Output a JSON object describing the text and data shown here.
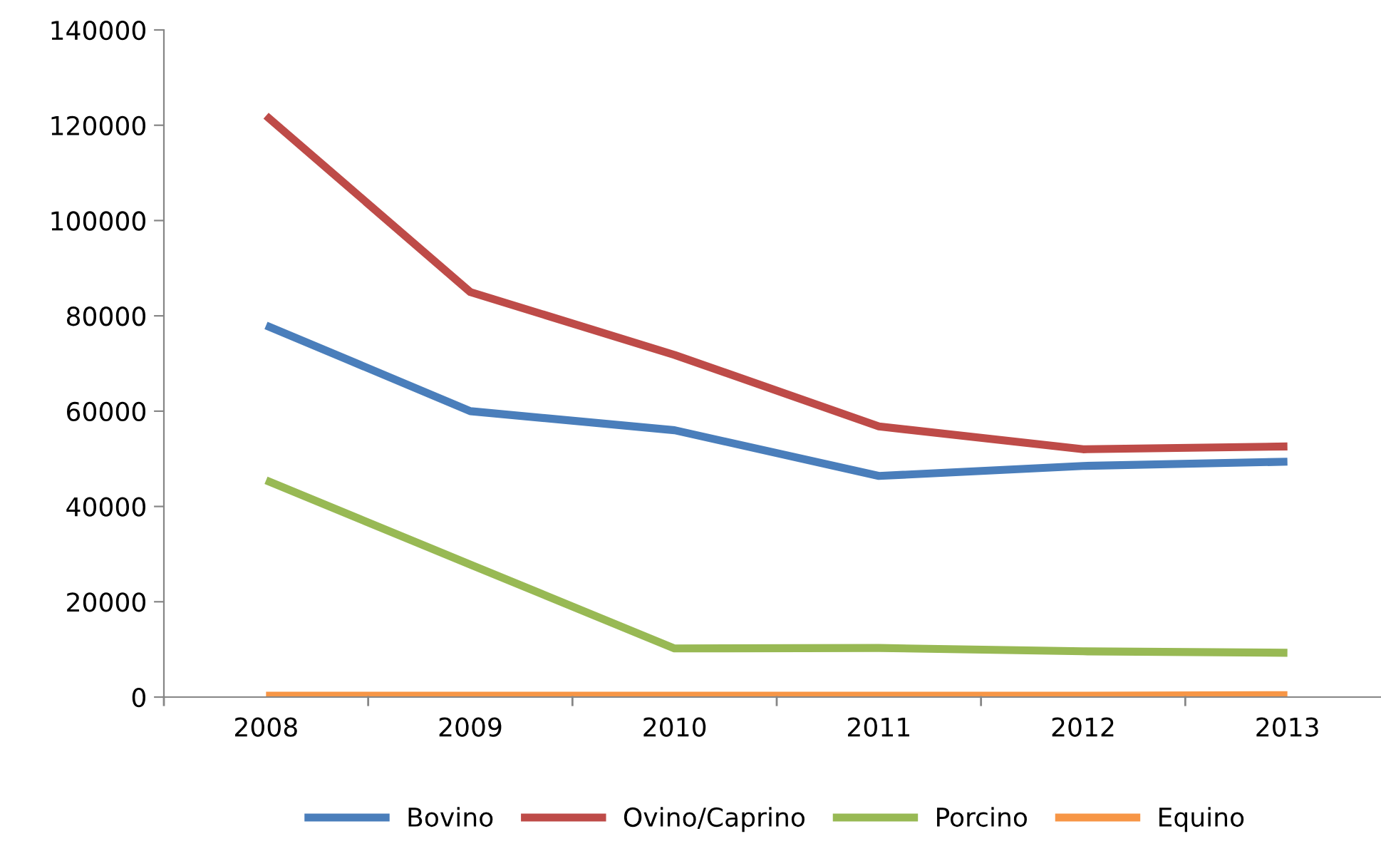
{
  "chart_data": {
    "type": "line",
    "categories": [
      "2008",
      "2009",
      "2010",
      "2011",
      "2012",
      "2013"
    ],
    "series": [
      {
        "name": "Bovino",
        "color": "#4a7ebb",
        "values": [
          78000,
          60000,
          56000,
          46400,
          48500,
          49400
        ]
      },
      {
        "name": "Ovino/Caprino",
        "color": "#be4b48",
        "values": [
          122000,
          85000,
          71800,
          56800,
          52000,
          52600
        ]
      },
      {
        "name": "Porcino",
        "color": "#98b954",
        "values": [
          45500,
          27800,
          10200,
          10300,
          9600,
          9300
        ]
      },
      {
        "name": "Equino",
        "color": "#f79646",
        "values": [
          300,
          300,
          300,
          300,
          300,
          400
        ]
      }
    ],
    "ylim": [
      0,
      140000
    ],
    "yticks": [
      0,
      20000,
      40000,
      60000,
      80000,
      100000,
      120000,
      140000
    ],
    "grid": false,
    "legend": "bottom",
    "marker": "none",
    "line_style": "solid"
  }
}
